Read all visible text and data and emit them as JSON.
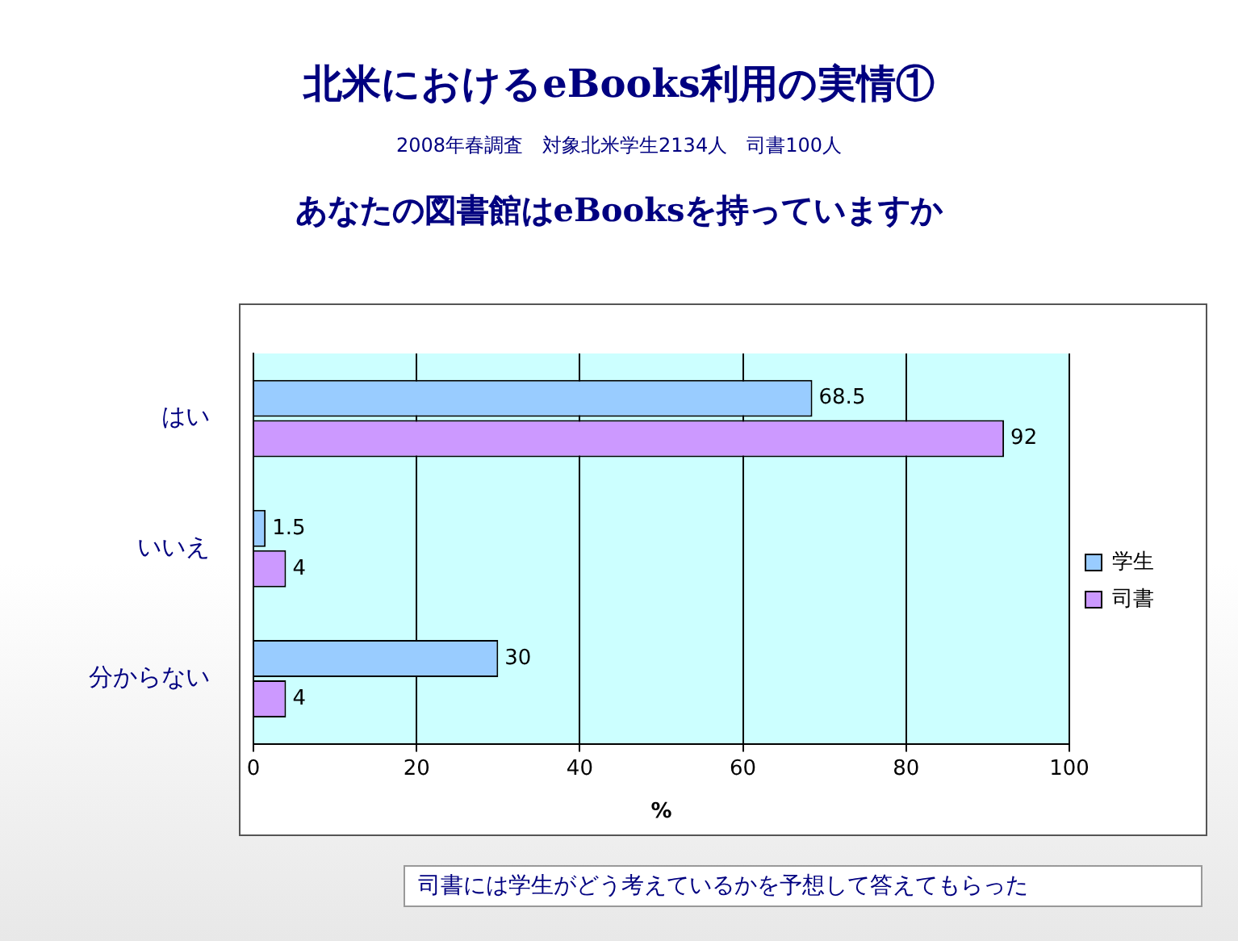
{
  "chart_data": {
    "type": "bar",
    "orientation": "horizontal",
    "title": "北米におけるeBooks利用の実情①",
    "subtitle": "2008年春調査　対象北米学生2134人　司書100人",
    "ylabel": "あなたの図書館はeBooksを持っていますか",
    "xlabel": "%",
    "categories": [
      "はい",
      "いいえ",
      "分からない"
    ],
    "series": [
      {
        "name": "学生",
        "color": "#99ccff",
        "values": [
          68.5,
          1.5,
          30
        ]
      },
      {
        "name": "司書",
        "color": "#cc99ff",
        "values": [
          92,
          4,
          4
        ]
      }
    ],
    "xlim": [
      0,
      100
    ],
    "xticks": [
      0,
      20,
      40,
      60,
      80,
      100
    ],
    "grid": "x",
    "legend": "right",
    "data_labels": true,
    "annotations": [
      "司書には学生がどう考えているかを予想して答えてもらった"
    ]
  }
}
